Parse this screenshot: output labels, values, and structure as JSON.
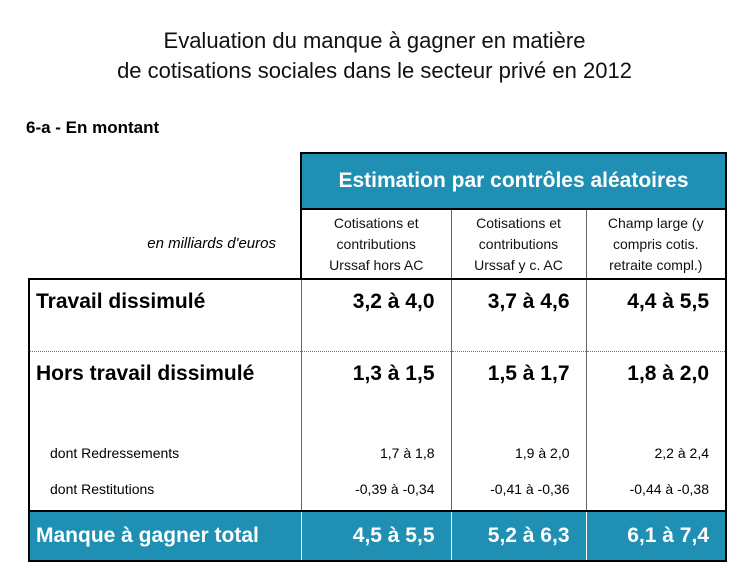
{
  "title_line1": "Evaluation du manque à gagner en matière",
  "title_line2": "de cotisations sociales dans le secteur privé en 2012",
  "section_label": "6-a - En montant",
  "band_header": "Estimation par contrôles aléatoires",
  "unit_label": "en milliards d'euros",
  "columns": [
    [
      "Cotisations et",
      "contributions",
      "Urssaf hors AC"
    ],
    [
      "Cotisations et",
      "contributions",
      "Urssaf y c. AC"
    ],
    [
      "Champ large (y",
      "compris cotis.",
      "retraite compl.)"
    ]
  ],
  "rows": [
    {
      "label": "Travail dissimulé",
      "values": [
        "3,2 à 4,0",
        "3,7 à 4,6",
        "4,4 à 5,5"
      ]
    },
    {
      "label": "Hors travail dissimulé",
      "values": [
        "1,3 à 1,5",
        "1,5 à 1,7",
        "1,8 à 2,0"
      ]
    },
    {
      "label": "dont Redressements",
      "values": [
        "1,7 à 1,8",
        "1,9 à 2,0",
        "2,2 à 2,4"
      ]
    },
    {
      "label": "dont Restitutions",
      "values": [
        "-0,39 à -0,34",
        "-0,41 à -0,36",
        "-0,44 à -0,38"
      ]
    }
  ],
  "total": {
    "label": "Manque à gagner total",
    "values": [
      "4,5 à 5,5",
      "5,2 à 6,3",
      "6,1 à 7,4"
    ]
  },
  "colors": {
    "accent": "#1f8fb3"
  }
}
